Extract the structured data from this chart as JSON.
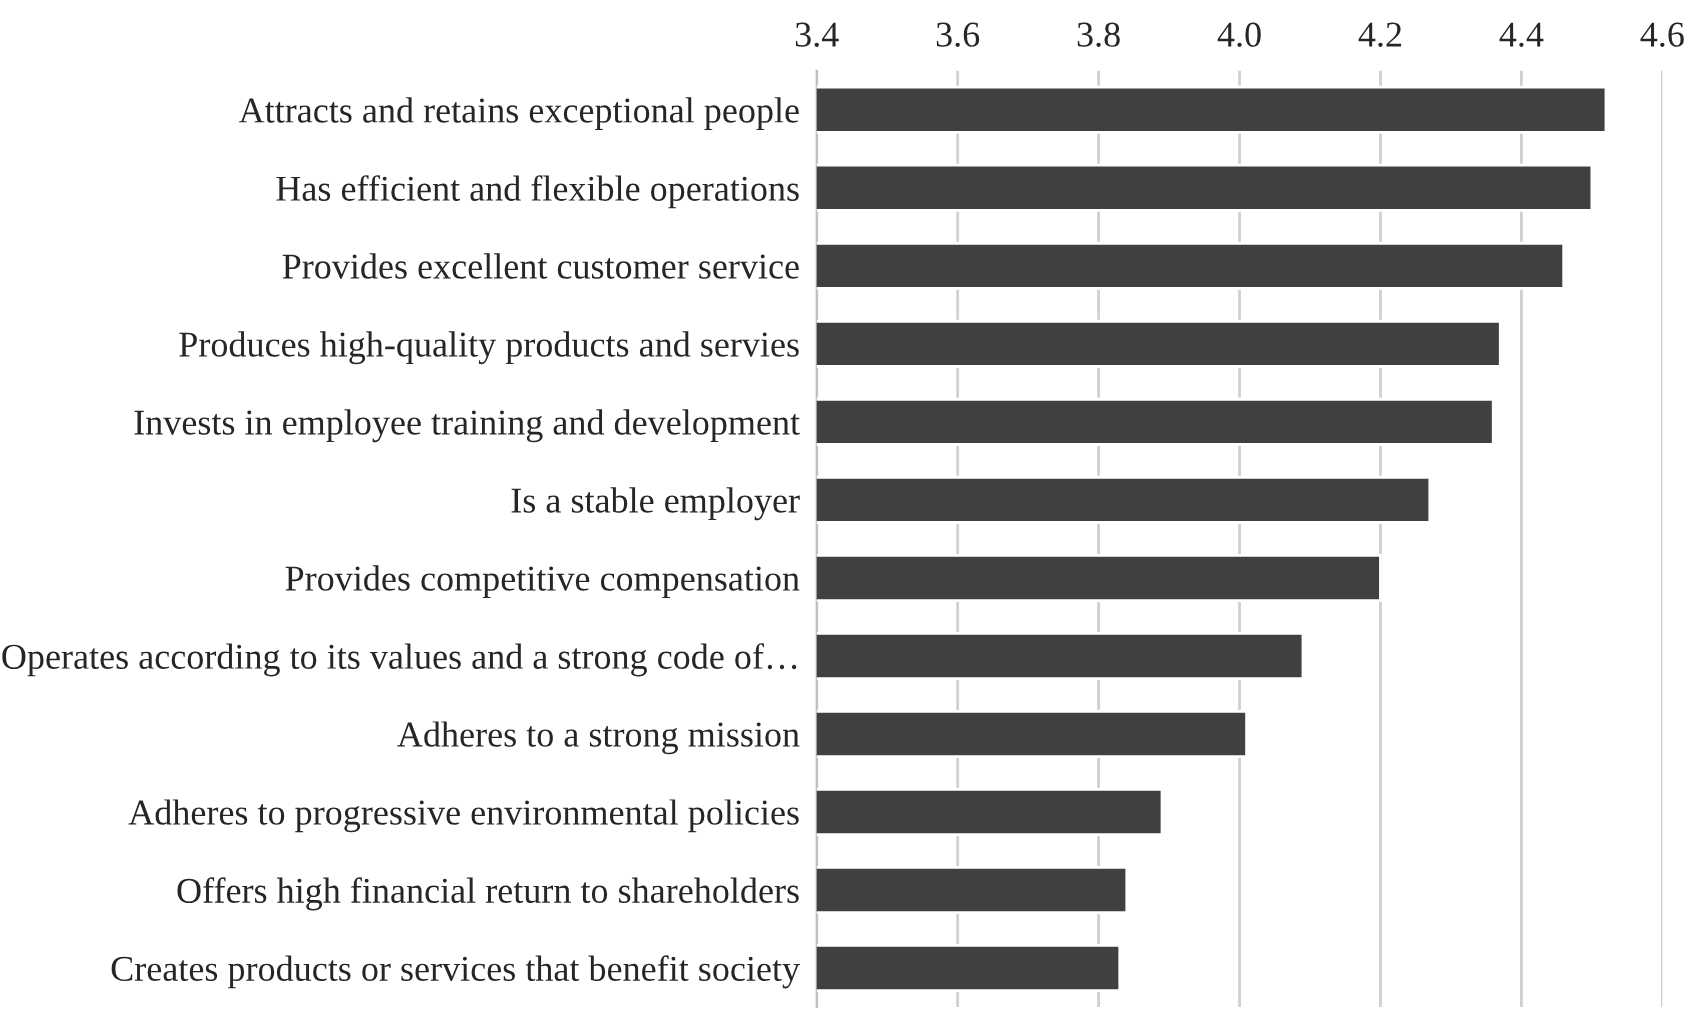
{
  "chart_data": {
    "type": "bar",
    "orientation": "horizontal",
    "categories": [
      "Attracts and retains exceptional people",
      "Has efficient and flexible operations",
      "Provides excellent customer service",
      "Produces high-quality products and servies",
      "Invests in employee training and development",
      "Is a stable employer",
      "Provides competitive compensation",
      "Operates according to its values and a strong code of…",
      "Adheres to a strong mission",
      "Adheres to progressive environmental policies",
      "Offers high financial return to shareholders",
      "Creates products or services that benefit society"
    ],
    "values": [
      4.52,
      4.5,
      4.46,
      4.37,
      4.36,
      4.27,
      4.2,
      4.09,
      4.01,
      3.89,
      3.84,
      3.83
    ],
    "color": "#404040",
    "xlim": [
      3.4,
      4.6
    ],
    "xticks": [
      {
        "value": 3.4,
        "label": "3.4"
      },
      {
        "value": 3.6,
        "label": "3.6"
      },
      {
        "value": 3.8,
        "label": "3.8"
      },
      {
        "value": 4.0,
        "label": "4.0"
      },
      {
        "value": 4.2,
        "label": "4.2"
      },
      {
        "value": 4.4,
        "label": "4.4"
      },
      {
        "value": 4.6,
        "label": "4.6"
      }
    ],
    "grid": "x",
    "legend": false
  }
}
